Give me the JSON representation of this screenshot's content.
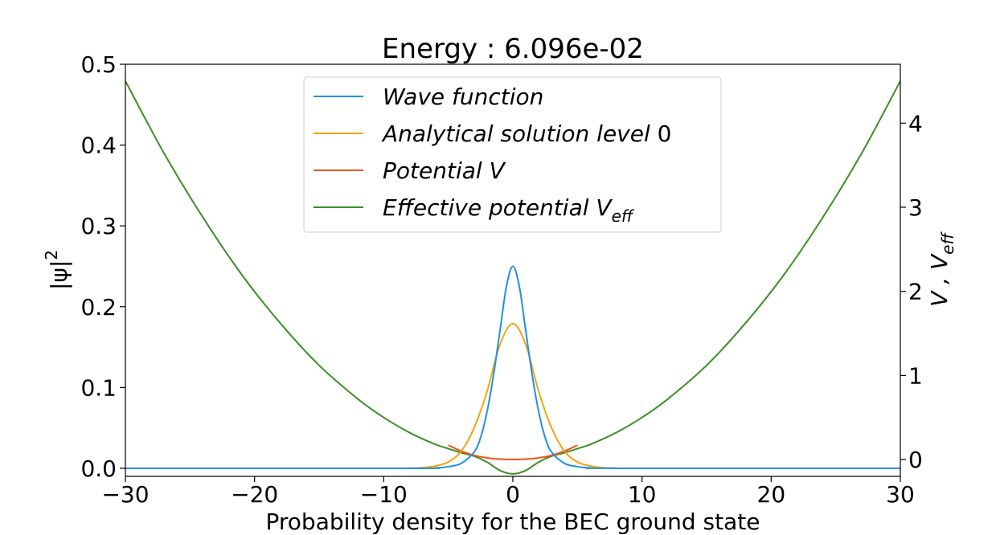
{
  "chart_data": {
    "type": "line",
    "title": "Energy : 6.096e-02",
    "xlabel": "Probability density for the BEC ground state",
    "ylabel_left": "|ψ|",
    "ylabel_left_sup": "2",
    "ylabel_right_prefix": "V ,  V",
    "ylabel_right_sub": "eff",
    "xlim": [
      -30,
      30
    ],
    "ylim_left": [
      -0.01,
      0.5
    ],
    "ylim_right": [
      -0.2,
      4.7
    ],
    "x_ticks": [
      -30,
      -20,
      -10,
      0,
      10,
      20,
      30
    ],
    "x_tick_labels": [
      "−30",
      "−20",
      "−10",
      "0",
      "10",
      "20",
      "30"
    ],
    "y_left_ticks": [
      0.0,
      0.1,
      0.2,
      0.3,
      0.4,
      0.5
    ],
    "y_left_tick_labels": [
      "0.0",
      "0.1",
      "0.2",
      "0.3",
      "0.4",
      "0.5"
    ],
    "y_right_ticks": [
      0,
      1,
      2,
      3,
      4
    ],
    "y_right_tick_labels": [
      "0",
      "1",
      "2",
      "3",
      "4"
    ],
    "grid": false,
    "legend_position": "upper center",
    "series": [
      {
        "name": "Wave function",
        "name_display": [
          "Wave  function"
        ],
        "axis": "left",
        "color": "#1f8fe6",
        "x": [
          -30,
          -8,
          -6,
          -5,
          -4,
          -3,
          -2.5,
          -2,
          -1.5,
          -1,
          -0.5,
          0,
          0.5,
          1,
          1.5,
          2,
          2.5,
          3,
          4,
          5,
          6,
          8,
          30
        ],
        "y": [
          0,
          0,
          0.0005,
          0.002,
          0.006,
          0.02,
          0.038,
          0.07,
          0.115,
          0.17,
          0.225,
          0.25,
          0.225,
          0.17,
          0.115,
          0.07,
          0.038,
          0.02,
          0.006,
          0.002,
          0.0005,
          0,
          0
        ]
      },
      {
        "name": "Analytical solution level 0",
        "name_display": [
          "Analytical  solution  level  ",
          "0"
        ],
        "axis": "left",
        "color": "#f5a30d",
        "x": [
          -30,
          -10,
          -8,
          -7,
          -6,
          -5,
          -4,
          -3,
          -2,
          -1,
          0,
          1,
          2,
          3,
          4,
          5,
          6,
          7,
          8,
          10,
          30
        ],
        "y": [
          0,
          0,
          0.0002,
          0.0007,
          0.0028,
          0.0078,
          0.021,
          0.05,
          0.095,
          0.153,
          0.179,
          0.153,
          0.095,
          0.05,
          0.021,
          0.0078,
          0.0028,
          0.0007,
          0.0002,
          0,
          0
        ]
      },
      {
        "name": "Potential V",
        "name_display": [
          "Potential  V"
        ],
        "axis": "right",
        "color": "#f0541c",
        "x": [
          -5,
          -4,
          -3,
          -2,
          -1,
          0,
          1,
          2,
          3,
          4,
          5
        ],
        "y": [
          0.17,
          0.1,
          0.05,
          0.02,
          0.005,
          0.0,
          0.005,
          0.02,
          0.05,
          0.1,
          0.17
        ]
      },
      {
        "name": "Effective potential V_eff",
        "name_display": [
          "Effective  potential  V",
          "eff"
        ],
        "axis": "right",
        "color": "#3b8f25",
        "x": [
          -30,
          -27,
          -24,
          -21,
          -18,
          -15,
          -12,
          -10,
          -8,
          -6,
          -5,
          -4,
          -3,
          -2,
          -1,
          0,
          1,
          2,
          3,
          4,
          5,
          6,
          8,
          10,
          12,
          15,
          18,
          21,
          24,
          27,
          30
        ],
        "y": [
          4.5,
          3.64,
          2.88,
          2.2,
          1.62,
          1.12,
          0.72,
          0.5,
          0.32,
          0.18,
          0.13,
          0.08,
          0.04,
          -0.03,
          -0.13,
          -0.17,
          -0.13,
          -0.03,
          0.04,
          0.08,
          0.13,
          0.18,
          0.32,
          0.5,
          0.72,
          1.12,
          1.62,
          2.2,
          2.88,
          3.64,
          4.5
        ]
      }
    ]
  }
}
